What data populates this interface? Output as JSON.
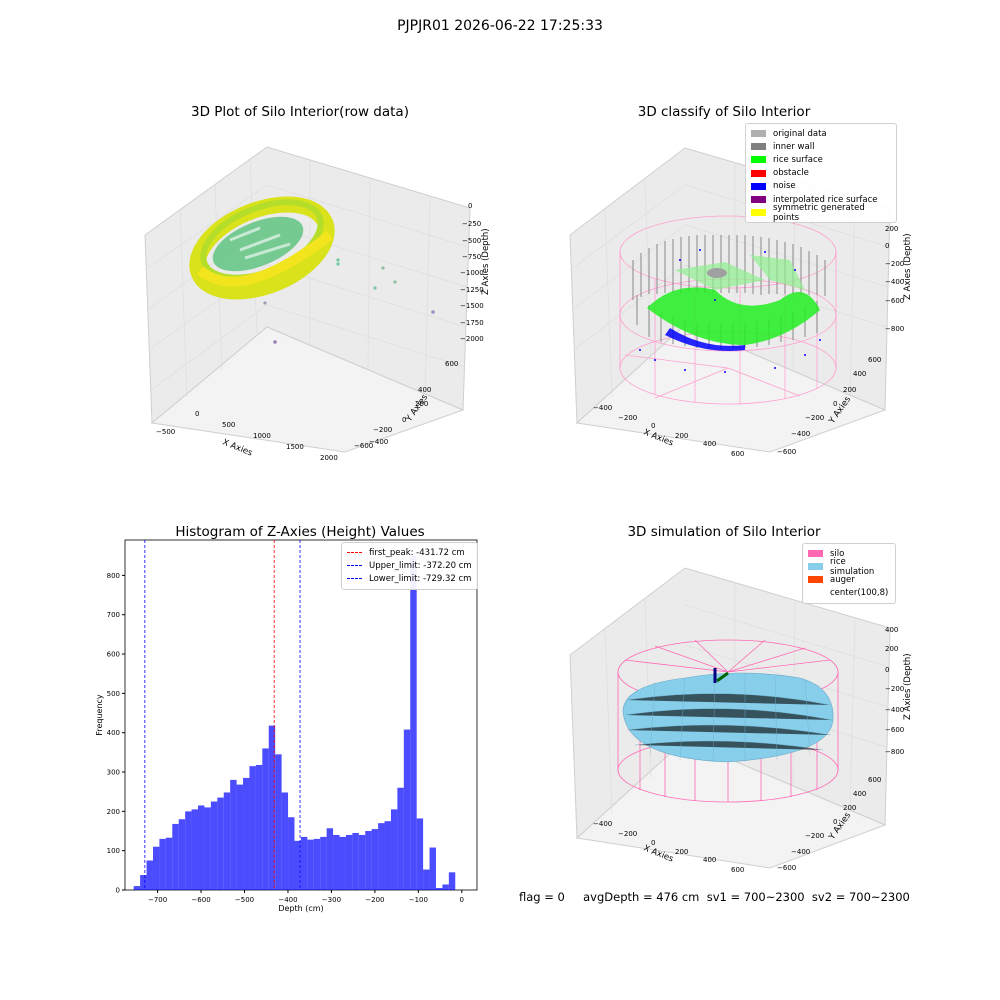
{
  "suptitle": "PJPJR01 2026-06-22 17:25:33",
  "footer": "flag = 0     avgDepth = 476 cm  sv1 = 700~2300  sv2 = 700~2300",
  "colors": {
    "silo": "#ff69b4",
    "rice_simulation": "#87ceeb",
    "auger": "#ff4500",
    "original_data": "#b0b0b0",
    "inner_wall": "#808080",
    "rice_surface": "#00ff00",
    "obstacle": "#ff0000",
    "noise": "#0000ff",
    "interpolated_rice_surface": "#800080",
    "symmetric_generated_points": "#ffff00",
    "hist_bar": "#0000ff"
  },
  "chart_data": [
    {
      "type": "scatter3d",
      "title": "3D Plot of Silo Interior(row data)",
      "xlabel": "X Axies",
      "ylabel": "Y Axies",
      "zlabel": "Z Axies (Depth)",
      "xticks": [
        "−500",
        "0",
        "500",
        "1000",
        "1500",
        "2000"
      ],
      "yticks": [
        "600",
        "400",
        "200",
        "0",
        "−200",
        "−400",
        "−600"
      ],
      "zticks": [
        "0",
        "−250",
        "−500",
        "−750",
        "−1000",
        "−1250",
        "−1500",
        "−1750",
        "−2000"
      ],
      "xlim": [
        -650,
        2000
      ],
      "ylim": [
        -650,
        650
      ],
      "zlim": [
        -2000,
        100
      ]
    },
    {
      "type": "scatter3d",
      "title": "3D classify of Silo Interior",
      "xlabel": "X Axies",
      "ylabel": "Y Axies",
      "zlabel": "Z Axies (Depth)",
      "xticks": [
        "−400",
        "−200",
        "0",
        "200",
        "400",
        "600"
      ],
      "yticks": [
        "600",
        "400",
        "200",
        "0",
        "−200",
        "−400",
        "−600"
      ],
      "zticks": [
        "200",
        "0",
        "−200",
        "−400",
        "−600",
        "−800"
      ],
      "legend": [
        "original data",
        "inner wall",
        "rice surface",
        "obstacle",
        "noise",
        "interpolated rice surface",
        "symmetric generated points"
      ],
      "legend_loc": "top-right"
    },
    {
      "type": "bar",
      "title": "Histogram of Z-Axies (Height) Values",
      "xlabel": "Depth (cm)",
      "ylabel": "Frequency",
      "bin_width": 14.8,
      "bin_start": -755,
      "values": [
        10,
        38,
        75,
        110,
        130,
        133,
        168,
        180,
        200,
        205,
        215,
        210,
        225,
        235,
        248,
        280,
        268,
        285,
        315,
        318,
        360,
        418,
        345,
        248,
        185,
        125,
        135,
        128,
        130,
        135,
        157,
        140,
        135,
        140,
        145,
        140,
        150,
        155,
        170,
        175,
        205,
        260,
        408,
        850,
        182,
        52,
        108,
        5,
        14,
        45
      ],
      "xlim": [
        -775,
        35
      ],
      "ylim": [
        0,
        890
      ],
      "xticks": [
        -700,
        -600,
        -500,
        -400,
        -300,
        -200,
        -100,
        0
      ],
      "xticklabels": [
        "−700",
        "−600",
        "−500",
        "−400",
        "−300",
        "−200",
        "−100",
        "0"
      ],
      "yticks": [
        0,
        100,
        200,
        300,
        400,
        500,
        600,
        700,
        800
      ],
      "yticklabels": [
        "0",
        "100",
        "200",
        "300",
        "400",
        "500",
        "600",
        "700",
        "800"
      ],
      "lines": [
        {
          "label": "first_peak: -431.72 cm",
          "x": -431.72,
          "color": "#ff0000"
        },
        {
          "label": "Upper_limit: -372.20 cm",
          "x": -372.2,
          "color": "#0000ff"
        },
        {
          "label": "Lower_limit: -729.32 cm",
          "x": -729.32,
          "color": "#0000ff"
        }
      ],
      "legend_loc": "top-right",
      "grid": false
    },
    {
      "type": "surface3d",
      "title": "3D simulation of Silo Interior",
      "xlabel": "X Axies",
      "ylabel": "Y Axies",
      "zlabel": "Z Axies (Depth)",
      "xticks": [
        "−400",
        "−200",
        "0",
        "200",
        "400",
        "600"
      ],
      "yticks": [
        "600",
        "400",
        "200",
        "0",
        "−200",
        "−400",
        "−600"
      ],
      "zticks": [
        "400",
        "200",
        "0",
        "−200",
        "−400",
        "−600",
        "−800"
      ],
      "legend": [
        "silo",
        "rice simulation",
        "auger",
        "center(100,8)"
      ],
      "legend_loc": "top-right"
    }
  ]
}
